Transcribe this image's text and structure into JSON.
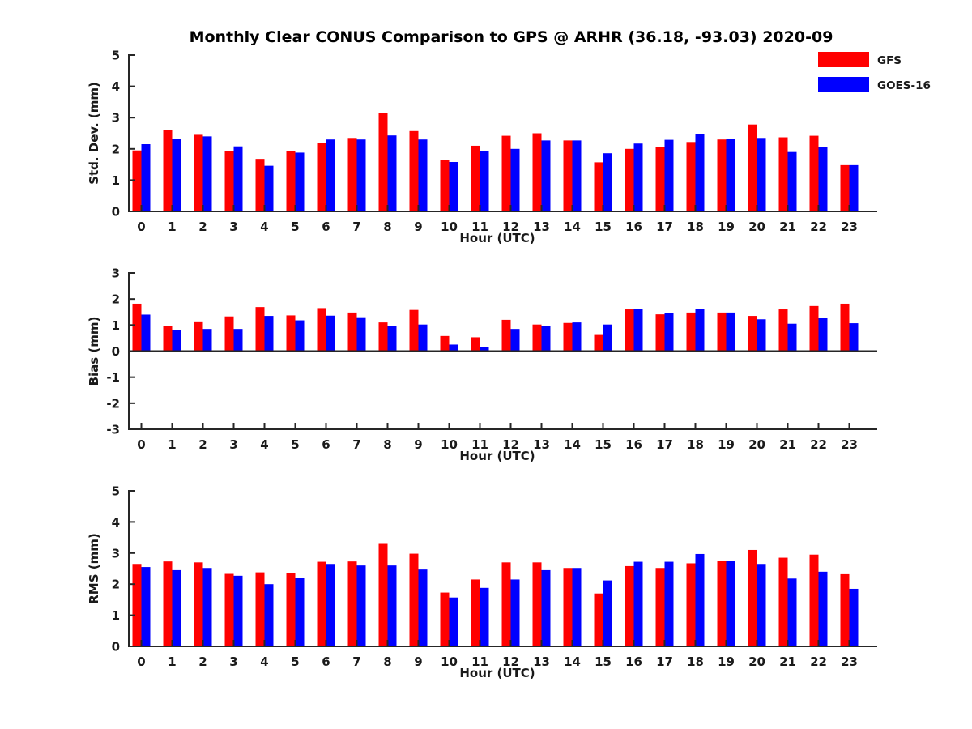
{
  "title": "Monthly Clear CONUS Comparison to GPS @ ARHR (36.18, -93.03) 2020-09",
  "legend": [
    {
      "label": "GFS",
      "color": "#ff0000"
    },
    {
      "label": "GOES-16",
      "color": "#0000ff"
    }
  ],
  "colors": {
    "gfs": "#ff0000",
    "goes16": "#0000ff",
    "axis": "#262626"
  },
  "chart_data": [
    {
      "id": "stddev",
      "type": "bar",
      "ylabel": "Std. Dev. (mm)",
      "xlabel": "Hour (UTC)",
      "ylim": [
        0,
        5
      ],
      "yticks": [
        0,
        1,
        2,
        3,
        4,
        5
      ],
      "grid": false,
      "legend_position": "top-right",
      "categories": [
        0,
        1,
        2,
        3,
        4,
        5,
        6,
        7,
        8,
        9,
        10,
        11,
        12,
        13,
        14,
        15,
        16,
        17,
        18,
        19,
        20,
        21,
        22,
        23
      ],
      "series": [
        {
          "name": "GFS",
          "color": "#ff0000",
          "values": [
            1.95,
            2.6,
            2.45,
            1.93,
            1.68,
            1.93,
            2.2,
            2.35,
            3.15,
            2.57,
            1.65,
            2.1,
            2.42,
            2.5,
            2.27,
            1.57,
            2.0,
            2.07,
            2.22,
            2.3,
            2.78,
            2.37,
            2.42,
            1.48
          ]
        },
        {
          "name": "GOES-16",
          "color": "#0000ff",
          "values": [
            2.15,
            2.32,
            2.4,
            2.08,
            1.46,
            1.88,
            2.3,
            2.3,
            2.43,
            2.3,
            1.58,
            1.92,
            2.0,
            2.27,
            2.27,
            1.86,
            2.17,
            2.29,
            2.47,
            2.32,
            2.35,
            1.9,
            2.06,
            1.48
          ]
        }
      ]
    },
    {
      "id": "bias",
      "type": "bar",
      "ylabel": "Bias (mm)",
      "xlabel": "Hour (UTC)",
      "ylim": [
        -3,
        3
      ],
      "yticks": [
        -3,
        -2,
        -1,
        0,
        1,
        2,
        3
      ],
      "grid": false,
      "categories": [
        0,
        1,
        2,
        3,
        4,
        5,
        6,
        7,
        8,
        9,
        10,
        11,
        12,
        13,
        14,
        15,
        16,
        17,
        18,
        19,
        20,
        21,
        22,
        23
      ],
      "series": [
        {
          "name": "GFS",
          "color": "#ff0000",
          "values": [
            1.82,
            0.95,
            1.14,
            1.33,
            1.69,
            1.37,
            1.65,
            1.48,
            1.1,
            1.58,
            0.58,
            0.53,
            1.2,
            1.02,
            1.08,
            0.65,
            1.6,
            1.41,
            1.48,
            1.48,
            1.35,
            1.6,
            1.73,
            1.82
          ]
        },
        {
          "name": "GOES-16",
          "color": "#0000ff",
          "values": [
            1.4,
            0.82,
            0.85,
            0.85,
            1.35,
            1.18,
            1.36,
            1.3,
            0.95,
            1.02,
            0.25,
            0.16,
            0.85,
            0.95,
            1.1,
            1.02,
            1.63,
            1.45,
            1.63,
            1.48,
            1.22,
            1.05,
            1.26,
            1.07
          ]
        }
      ]
    },
    {
      "id": "rms",
      "type": "bar",
      "ylabel": "RMS (mm)",
      "xlabel": "Hour (UTC)",
      "ylim": [
        0,
        5
      ],
      "yticks": [
        0,
        1,
        2,
        3,
        4,
        5
      ],
      "grid": false,
      "categories": [
        0,
        1,
        2,
        3,
        4,
        5,
        6,
        7,
        8,
        9,
        10,
        11,
        12,
        13,
        14,
        15,
        16,
        17,
        18,
        19,
        20,
        21,
        22,
        23
      ],
      "series": [
        {
          "name": "GFS",
          "color": "#ff0000",
          "values": [
            2.65,
            2.73,
            2.7,
            2.33,
            2.38,
            2.35,
            2.72,
            2.73,
            3.32,
            2.98,
            1.73,
            2.15,
            2.7,
            2.7,
            2.52,
            1.7,
            2.58,
            2.52,
            2.67,
            2.75,
            3.1,
            2.85,
            2.95,
            2.32
          ]
        },
        {
          "name": "GOES-16",
          "color": "#0000ff",
          "values": [
            2.55,
            2.45,
            2.52,
            2.27,
            2.0,
            2.2,
            2.65,
            2.6,
            2.6,
            2.47,
            1.57,
            1.88,
            2.15,
            2.45,
            2.52,
            2.12,
            2.72,
            2.72,
            2.97,
            2.75,
            2.65,
            2.18,
            2.4,
            1.85
          ]
        }
      ]
    }
  ]
}
